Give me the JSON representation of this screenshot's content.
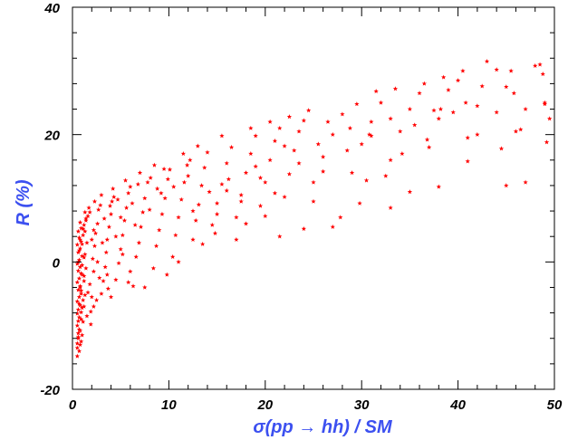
{
  "colors": {
    "points": "#ff0000",
    "axis_titles": "#3c50f0",
    "frame": "#000000"
  },
  "chart_data": {
    "type": "scatter",
    "title": "",
    "xlabel": "σ(pp → hh) / SM",
    "ylabel": "R (%)",
    "xlim": [
      0,
      50
    ],
    "ylim": [
      -20,
      40
    ],
    "xticks": [
      0,
      10,
      20,
      30,
      40,
      50
    ],
    "yticks": [
      -20,
      0,
      20,
      40
    ],
    "x_tick_labels": [
      "0",
      "10",
      "20",
      "30",
      "40",
      "50"
    ],
    "y_tick_labels": [
      "-20",
      "0",
      "20",
      "40"
    ],
    "grid": false,
    "legend": "none",
    "marker": "star",
    "series": [
      {
        "name": "",
        "points": [
          [
            0.5,
            -14.8
          ],
          [
            0.5,
            -13.5
          ],
          [
            0.5,
            -12.8
          ],
          [
            0.6,
            -12.0
          ],
          [
            0.6,
            -11.2
          ],
          [
            0.7,
            -10.6
          ],
          [
            0.5,
            -10.0
          ],
          [
            0.6,
            -9.3
          ],
          [
            0.7,
            -8.7
          ],
          [
            0.5,
            -8.1
          ],
          [
            0.6,
            -7.5
          ],
          [
            0.8,
            -6.8
          ],
          [
            0.5,
            -6.2
          ],
          [
            0.7,
            -5.5
          ],
          [
            0.9,
            -5.0
          ],
          [
            0.6,
            -4.4
          ],
          [
            0.8,
            -3.8
          ],
          [
            0.5,
            -3.2
          ],
          [
            0.7,
            -2.6
          ],
          [
            1.0,
            -2.0
          ],
          [
            0.6,
            -1.4
          ],
          [
            0.8,
            -0.8
          ],
          [
            0.5,
            -0.3
          ],
          [
            0.7,
            0.3
          ],
          [
            1.0,
            0.9
          ],
          [
            0.6,
            1.5
          ],
          [
            0.8,
            2.1
          ],
          [
            0.5,
            2.7
          ],
          [
            0.9,
            3.2
          ],
          [
            0.7,
            3.8
          ],
          [
            1.1,
            4.2
          ],
          [
            0.6,
            4.8
          ],
          [
            0.9,
            5.3
          ],
          [
            1.2,
            5.8
          ],
          [
            0.8,
            6.2
          ],
          [
            1.0,
            -11.5
          ],
          [
            1.1,
            -9.4
          ],
          [
            1.2,
            -7.0
          ],
          [
            1.3,
            -5.2
          ],
          [
            1.2,
            -3.0
          ],
          [
            1.4,
            -1.0
          ],
          [
            1.3,
            1.2
          ],
          [
            1.5,
            3.0
          ],
          [
            1.4,
            6.5
          ],
          [
            1.6,
            7.2
          ],
          [
            1.8,
            7.8
          ],
          [
            1.9,
            -7.8
          ],
          [
            2.0,
            -5.5
          ],
          [
            1.8,
            -3.5
          ],
          [
            2.2,
            -1.5
          ],
          [
            2.1,
            0.5
          ],
          [
            2.3,
            2.5
          ],
          [
            2.4,
            4.5
          ],
          [
            2.6,
            6.0
          ],
          [
            2.7,
            8.2
          ],
          [
            2.9,
            8.9
          ],
          [
            3.0,
            -5.0
          ],
          [
            3.2,
            -3.0
          ],
          [
            3.4,
            -0.8
          ],
          [
            3.5,
            1.5
          ],
          [
            3.6,
            3.5
          ],
          [
            3.8,
            5.5
          ],
          [
            4.0,
            7.5
          ],
          [
            4.1,
            9.5
          ],
          [
            4.3,
            10.2
          ],
          [
            4.5,
            -2.8
          ],
          [
            4.8,
            -0.2
          ],
          [
            5.0,
            2.0
          ],
          [
            5.2,
            4.2
          ],
          [
            5.4,
            6.5
          ],
          [
            5.6,
            8.5
          ],
          [
            5.8,
            10.8
          ],
          [
            6.0,
            11.8
          ],
          [
            6.3,
            -3.8
          ],
          [
            6.6,
            0.8
          ],
          [
            6.9,
            3.0
          ],
          [
            7.1,
            5.5
          ],
          [
            7.3,
            7.8
          ],
          [
            7.5,
            10.0
          ],
          [
            7.8,
            12.5
          ],
          [
            8.1,
            13.2
          ],
          [
            8.4,
            -1.0
          ],
          [
            8.7,
            2.5
          ],
          [
            9.0,
            5.0
          ],
          [
            9.3,
            7.5
          ],
          [
            9.6,
            10.0
          ],
          [
            9.9,
            13.0
          ],
          [
            10.1,
            14.5
          ],
          [
            10.4,
            0.8
          ],
          [
            10.7,
            4.2
          ],
          [
            11.0,
            7.0
          ],
          [
            11.3,
            9.8
          ],
          [
            11.6,
            12.5
          ],
          [
            11.9,
            15.2
          ],
          [
            12.2,
            16.0
          ],
          [
            12.5,
            3.5
          ],
          [
            12.8,
            6.5
          ],
          [
            13.1,
            9.0
          ],
          [
            13.4,
            12.0
          ],
          [
            13.7,
            14.8
          ],
          [
            14.0,
            17.2
          ],
          [
            14.5,
            5.8
          ],
          [
            15.0,
            9.2
          ],
          [
            15.5,
            12.2
          ],
          [
            16.0,
            15.5
          ],
          [
            16.5,
            18.0
          ],
          [
            17.0,
            7.0
          ],
          [
            17.5,
            10.5
          ],
          [
            18.0,
            14.0
          ],
          [
            18.5,
            17.0
          ],
          [
            19.0,
            19.8
          ],
          [
            19.5,
            8.8
          ],
          [
            20.0,
            12.5
          ],
          [
            20.5,
            16.0
          ],
          [
            21.0,
            19.0
          ],
          [
            21.5,
            21.0
          ],
          [
            22.0,
            10.2
          ],
          [
            22.5,
            13.8
          ],
          [
            23.0,
            17.5
          ],
          [
            23.5,
            20.5
          ],
          [
            24.0,
            22.2
          ],
          [
            25.0,
            12.5
          ],
          [
            26.0,
            16.5
          ],
          [
            27.0,
            20.0
          ],
          [
            28.0,
            23.2
          ],
          [
            29.0,
            14.0
          ],
          [
            30.0,
            18.5
          ],
          [
            31.0,
            22.0
          ],
          [
            32.0,
            25.0
          ],
          [
            33.0,
            16.0
          ],
          [
            34.0,
            20.5
          ],
          [
            35.0,
            24.0
          ],
          [
            36.0,
            26.5
          ],
          [
            37.0,
            18.0
          ],
          [
            38.0,
            22.5
          ],
          [
            39.0,
            27.0
          ],
          [
            40.0,
            28.5
          ],
          [
            41.0,
            19.5
          ],
          [
            42.0,
            24.5
          ],
          [
            43.0,
            31.5
          ],
          [
            44.0,
            23.5
          ],
          [
            45.0,
            27.5
          ],
          [
            45.5,
            30.0
          ],
          [
            46.0,
            20.5
          ],
          [
            47.0,
            24.0
          ],
          [
            48.5,
            31.0
          ],
          [
            49.0,
            25.0
          ],
          [
            49.5,
            22.5
          ],
          [
            49.2,
            18.8
          ],
          [
            45.0,
            12.0
          ],
          [
            47.0,
            12.5
          ],
          [
            41.0,
            15.8
          ],
          [
            38.0,
            11.8
          ],
          [
            33.0,
            8.5
          ],
          [
            27.0,
            5.5
          ],
          [
            21.5,
            4.0
          ],
          [
            17.0,
            3.5
          ],
          [
            13.5,
            2.8
          ],
          [
            11.0,
            0.0
          ],
          [
            9.8,
            -2.0
          ],
          [
            24.5,
            23.8
          ],
          [
            26.5,
            22.0
          ],
          [
            29.5,
            24.8
          ],
          [
            31.5,
            26.8
          ],
          [
            33.5,
            27.2
          ],
          [
            36.5,
            28.0
          ],
          [
            38.5,
            29.0
          ],
          [
            40.5,
            30.0
          ],
          [
            44.0,
            30.2
          ],
          [
            48.0,
            30.8
          ],
          [
            18.5,
            21.0
          ],
          [
            20.5,
            22.0
          ],
          [
            22.5,
            22.8
          ],
          [
            15.5,
            19.8
          ],
          [
            13.0,
            18.2
          ],
          [
            11.5,
            17.0
          ],
          [
            8.5,
            15.2
          ],
          [
            7.0,
            14.0
          ],
          [
            5.5,
            12.8
          ],
          [
            4.2,
            11.5
          ],
          [
            3.0,
            10.5
          ],
          [
            2.3,
            9.5
          ],
          [
            1.7,
            8.5
          ],
          [
            1.3,
            7.8
          ],
          [
            2.5,
            -6.0
          ],
          [
            3.7,
            -4.2
          ],
          [
            1.5,
            -8.5
          ],
          [
            2.8,
            -2.5
          ],
          [
            1.9,
            -9.8
          ],
          [
            0.9,
            -12.5
          ],
          [
            0.8,
            -10.8
          ],
          [
            0.9,
            -9.0
          ],
          [
            1.0,
            -7.2
          ],
          [
            1.1,
            -6.0
          ],
          [
            0.9,
            -4.5
          ],
          [
            1.2,
            -2.2
          ],
          [
            1.0,
            -0.5
          ],
          [
            1.2,
            0.7
          ],
          [
            1.0,
            2.8
          ],
          [
            1.3,
            4.8
          ],
          [
            0.7,
            -14.0
          ],
          [
            0.8,
            -13.0
          ],
          [
            0.6,
            -11.8
          ],
          [
            0.9,
            -7.9
          ],
          [
            0.7,
            -6.6
          ],
          [
            0.8,
            -4.0
          ],
          [
            0.9,
            -1.8
          ],
          [
            0.6,
            0.0
          ],
          [
            0.7,
            1.8
          ],
          [
            0.8,
            3.5
          ],
          [
            1.1,
            5.2
          ],
          [
            1.4,
            6.8
          ],
          [
            2.0,
            3.5
          ],
          [
            2.2,
            5.0
          ],
          [
            3.3,
            6.8
          ],
          [
            3.9,
            8.8
          ],
          [
            4.7,
            9.8
          ],
          [
            6.2,
            9.2
          ],
          [
            6.8,
            12.2
          ],
          [
            8.8,
            11.5
          ],
          [
            9.5,
            14.6
          ],
          [
            12.0,
            13.5
          ],
          [
            14.2,
            11.0
          ],
          [
            16.2,
            13.0
          ],
          [
            19.0,
            15.0
          ],
          [
            23.5,
            15.5
          ],
          [
            25.5,
            18.5
          ],
          [
            28.5,
            17.5
          ],
          [
            31.0,
            19.8
          ],
          [
            35.5,
            21.5
          ],
          [
            37.5,
            23.8
          ],
          [
            39.5,
            23.5
          ],
          [
            42.5,
            27.6
          ],
          [
            46.5,
            20.8
          ],
          [
            49.0,
            24.8
          ],
          [
            32.5,
            13.5
          ],
          [
            30.5,
            12.8
          ],
          [
            35.0,
            11.0
          ],
          [
            25.0,
            9.5
          ],
          [
            18.0,
            6.0
          ],
          [
            14.8,
            4.5
          ],
          [
            16.0,
            11.2
          ],
          [
            20.0,
            7.2
          ],
          [
            24.0,
            5.2
          ],
          [
            27.8,
            7.0
          ],
          [
            29.8,
            9.2
          ],
          [
            19.5,
            13.2
          ],
          [
            22.0,
            18.2
          ],
          [
            26.0,
            14.2
          ],
          [
            34.2,
            17.0
          ],
          [
            36.8,
            19.2
          ],
          [
            42.0,
            20.0
          ],
          [
            44.5,
            17.8
          ],
          [
            48.8,
            29.5
          ],
          [
            45.8,
            26.5
          ],
          [
            40.8,
            25.0
          ],
          [
            38.2,
            24.0
          ],
          [
            28.8,
            21.0
          ],
          [
            30.8,
            20.0
          ],
          [
            33.0,
            22.5
          ],
          [
            4.5,
            4.0
          ],
          [
            5.2,
            1.2
          ],
          [
            6.0,
            -1.5
          ],
          [
            3.6,
            -2.0
          ],
          [
            2.6,
            0.0
          ],
          [
            7.5,
            -4.0
          ],
          [
            5.8,
            -3.2
          ],
          [
            4.0,
            -5.5
          ],
          [
            2.2,
            -7.0
          ],
          [
            1.6,
            -4.8
          ],
          [
            3.1,
            3.0
          ],
          [
            5.0,
            7.0
          ],
          [
            6.5,
            5.8
          ],
          [
            8.0,
            8.2
          ],
          [
            9.2,
            10.8
          ],
          [
            10.5,
            11.8
          ],
          [
            12.5,
            8.0
          ],
          [
            15.0,
            7.5
          ],
          [
            17.5,
            9.5
          ],
          [
            21.0,
            10.8
          ]
        ]
      }
    ]
  }
}
